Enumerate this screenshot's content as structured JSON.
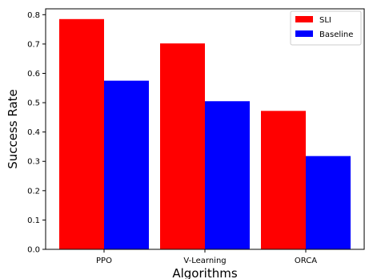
{
  "chart_data": {
    "type": "bar",
    "title": "",
    "xlabel": "Algorithms",
    "ylabel": "Success Rate",
    "categories": [
      "PPO",
      "V-Learning",
      "ORCA"
    ],
    "series": [
      {
        "name": "SLI",
        "values": [
          0.785,
          0.702,
          0.472
        ],
        "color": "#ff0000"
      },
      {
        "name": "Baseline",
        "values": [
          0.575,
          0.505,
          0.318
        ],
        "color": "#0000ff"
      }
    ],
    "ylim": [
      0,
      0.82
    ],
    "yticks": [
      "0.0",
      "0.1",
      "0.2",
      "0.3",
      "0.4",
      "0.5",
      "0.6",
      "0.7",
      "0.8"
    ],
    "grid": false,
    "legend_position": "top-right"
  }
}
